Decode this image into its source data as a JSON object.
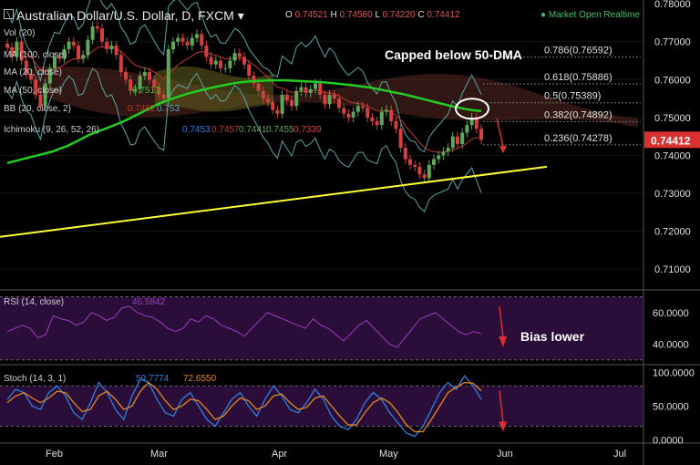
{
  "header": {
    "menu_icon": "hamburger-icon",
    "title": "Australian Dollar/U.S. Dollar, D, FXCM",
    "chevron_icon": "chevron-down-icon",
    "ohlc": {
      "o_label": "O",
      "o": "0.74521",
      "h_label": "H",
      "h": "0.74580",
      "l_label": "L",
      "l": "0.74220",
      "c_label": "C",
      "c": "0.74412"
    },
    "status": "Market Open Realtime"
  },
  "legends": {
    "vol": "Vol (20)",
    "ma100": "MA (100, close)",
    "ma20": "MA (20, close)",
    "ma50": "MA (50, close)",
    "ma50_value": "0.7517",
    "bb": "BB (20, close, 2)",
    "bb_values": [
      "0.7452",
      "0.753"
    ],
    "ichimoku": "Ichimoku (9, 26, 52, 26)",
    "ichimoku_values": [
      "0.7453",
      "0.7457",
      "0.7441",
      "0.7455",
      "0.7339"
    ],
    "rsi": "RSI (14, close)",
    "rsi_value": "46.5842",
    "stoch": "Stoch (14, 3, 1)",
    "stoch_values": [
      "59.7774",
      "72.6550"
    ]
  },
  "annotations": {
    "capped": "Capped below 50-DMA",
    "bias": "Bias lower",
    "fib": [
      {
        "label": "0.786(0.76592)",
        "value": 0.76592
      },
      {
        "label": "0.618(0.75886)",
        "value": 0.75886
      },
      {
        "label": "0.5(0.75389)",
        "value": 0.75389
      },
      {
        "label": "0.382(0.74892)",
        "value": 0.74892
      },
      {
        "label": "0.236(0.74278)",
        "value": 0.74278
      }
    ],
    "current_price": "0.74412"
  },
  "colors": {
    "background": "#000000",
    "up": "#5fa85a",
    "down": "#d24040",
    "ma50": "#22cc22",
    "ma20": "#c0392b",
    "bb": "#5aa6a6",
    "cloud_bull": "#5e5a1e",
    "cloud_bear": "#5a2a22",
    "trendline": "#ffff33",
    "rsi": "#9b3fc0",
    "rsi_band": "#2a0d38",
    "stoch_k": "#2f7fe0",
    "stoch_d": "#e0881f",
    "price_tag": "#d93030"
  },
  "chart_data": [
    {
      "type": "candlestick",
      "title": "Australian Dollar/U.S. Dollar, D, FXCM",
      "x_ticks": [
        "Feb",
        "Mar",
        "Apr",
        "May",
        "Jun",
        "Jul"
      ],
      "y_ticks": [
        "0.78000",
        "0.77000",
        "0.76000",
        "0.75000",
        "0.74000",
        "0.73000",
        "0.72000",
        "0.71000"
      ],
      "ylim": [
        0.7045,
        0.781
      ],
      "close": [
        0.7685,
        0.766,
        0.77,
        0.765,
        0.7615,
        0.76,
        0.756,
        0.753,
        0.759,
        0.763,
        0.766,
        0.7655,
        0.768,
        0.77,
        0.769,
        0.7655,
        0.7665,
        0.7705,
        0.774,
        0.7735,
        0.77,
        0.768,
        0.769,
        0.7665,
        0.762,
        0.76,
        0.757,
        0.7575,
        0.761,
        0.762,
        0.76,
        0.758,
        0.756,
        0.755,
        0.768,
        0.77,
        0.771,
        0.77,
        0.769,
        0.771,
        0.772,
        0.769,
        0.766,
        0.764,
        0.765,
        0.763,
        0.763,
        0.765,
        0.767,
        0.766,
        0.764,
        0.761,
        0.759,
        0.757,
        0.755,
        0.754,
        0.752,
        0.751,
        0.756,
        0.7545,
        0.753,
        0.757,
        0.758,
        0.7565,
        0.7575,
        0.759,
        0.756,
        0.7535,
        0.756,
        0.755,
        0.7525,
        0.751,
        0.75,
        0.7515,
        0.753,
        0.7525,
        0.75,
        0.749,
        0.748,
        0.7515,
        0.752,
        0.749,
        0.747,
        0.742,
        0.739,
        0.7375,
        0.737,
        0.735,
        0.734,
        0.7375,
        0.739,
        0.74,
        0.741,
        0.742,
        0.745,
        0.743,
        0.746,
        0.748,
        0.75,
        0.747,
        0.7441
      ],
      "ma50": [
        0.738,
        0.7385,
        0.739,
        0.7395,
        0.74,
        0.7405,
        0.741,
        0.7418,
        0.7425,
        0.7435,
        0.7445,
        0.7455,
        0.7463,
        0.747,
        0.7478,
        0.7486,
        0.7495,
        0.7505,
        0.7515,
        0.7525,
        0.7535,
        0.7543,
        0.755,
        0.7557,
        0.7563,
        0.7568,
        0.7573,
        0.7578,
        0.7582,
        0.7586,
        0.759,
        0.7593,
        0.7595,
        0.7596,
        0.7597,
        0.7598,
        0.7598,
        0.7598,
        0.7597,
        0.7596,
        0.7595,
        0.7594,
        0.7593,
        0.7591,
        0.7589,
        0.7587,
        0.7585,
        0.7582,
        0.758,
        0.7576,
        0.7572,
        0.7568,
        0.7564,
        0.756,
        0.7555,
        0.755,
        0.7545,
        0.754,
        0.7535,
        0.753,
        0.7526,
        0.7522,
        0.7519,
        0.7517
      ]
    },
    {
      "type": "line",
      "title": "RSI (14, close)",
      "y_ticks": [
        "60.0000",
        "40.0000"
      ],
      "ylim": [
        27,
        72
      ],
      "values": [
        48,
        50,
        52,
        50,
        44,
        46,
        58,
        56,
        55,
        52,
        54,
        60,
        58,
        55,
        57,
        63,
        64,
        60,
        58,
        57,
        54,
        50,
        48,
        50,
        56,
        54,
        58,
        56,
        52,
        50,
        48,
        45,
        50,
        55,
        60,
        58,
        56,
        54,
        52,
        50,
        56,
        52,
        50,
        46,
        42,
        47,
        52,
        55,
        50,
        45,
        40,
        38,
        44,
        50,
        56,
        58,
        60,
        56,
        52,
        48,
        46,
        48,
        46.58
      ]
    },
    {
      "type": "line",
      "title": "Stoch (14, 3, 1)",
      "y_ticks": [
        "100.0000",
        "50.0000",
        "0.0000"
      ],
      "ylim": [
        -5,
        106
      ],
      "k": [
        60,
        75,
        70,
        50,
        45,
        70,
        80,
        65,
        40,
        30,
        55,
        85,
        70,
        45,
        30,
        65,
        90,
        85,
        60,
        40,
        35,
        60,
        70,
        50,
        30,
        20,
        40,
        60,
        70,
        50,
        35,
        60,
        80,
        65,
        45,
        40,
        55,
        75,
        60,
        35,
        20,
        15,
        30,
        55,
        70,
        60,
        40,
        25,
        10,
        5,
        20,
        45,
        70,
        85,
        75,
        95,
        80,
        59.78
      ],
      "d": [
        55,
        65,
        70,
        62,
        55,
        62,
        72,
        70,
        55,
        42,
        45,
        65,
        72,
        60,
        45,
        50,
        72,
        85,
        75,
        58,
        45,
        50,
        60,
        58,
        45,
        30,
        35,
        50,
        62,
        58,
        45,
        50,
        65,
        68,
        55,
        45,
        48,
        62,
        65,
        50,
        35,
        22,
        22,
        40,
        55,
        62,
        55,
        40,
        22,
        12,
        12,
        30,
        50,
        70,
        78,
        85,
        84,
        72.66
      ]
    }
  ]
}
